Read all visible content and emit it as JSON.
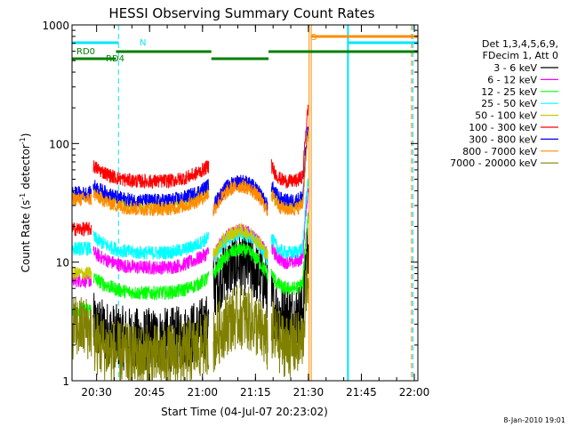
{
  "chart_data": {
    "type": "line",
    "title": "HESSI Observing Summary Count Rates",
    "xlabel": "Start Time (04-Jul-07 20:23:02)",
    "ylabel_main": "Count Rate (s",
    "ylabel_sup1": "-1",
    "ylabel_mid": " detector",
    "ylabel_sup2": "-1",
    "ylabel_end": ")",
    "y_scale": "log",
    "ylim": [
      1,
      1000
    ],
    "xlim": [
      "20:23:02",
      "22:01:00"
    ],
    "y_ticks": [
      "1",
      "10",
      "100",
      "1000"
    ],
    "x_ticks": [
      "20:30",
      "20:45",
      "21:00",
      "21:15",
      "21:30",
      "21:45",
      "22:00"
    ],
    "legend_header": [
      "Det 1,3,4,5,6,9,",
      "FDecim 1, Att 0"
    ],
    "footer_date": "8-Jan-2010 19:01",
    "flags": {
      "RD0": {
        "label": "RD0",
        "color": "#008000"
      },
      "RD4": {
        "label": "RD4",
        "color": "#008000"
      },
      "N": {
        "label": "N",
        "color": "#00e5ff"
      },
      "S": {
        "label": "S",
        "color": "#ff8c00"
      }
    },
    "series": [
      {
        "name": "3 - 6 keV",
        "color": "#000000"
      },
      {
        "name": "6 - 12 keV",
        "color": "#ff00ff"
      },
      {
        "name": "12 - 25 keV",
        "color": "#00ff00"
      },
      {
        "name": "25 - 50 keV",
        "color": "#00ffff"
      },
      {
        "name": "50 - 100 keV",
        "color": "#c8c800"
      },
      {
        "name": "100 - 300 keV",
        "color": "#ff0000"
      },
      {
        "name": "300 - 800 keV",
        "color": "#0000ff"
      },
      {
        "name": "800 - 7000 keV",
        "color": "#ff8c00"
      },
      {
        "name": "7000 - 20000 keV",
        "color": "#808000"
      }
    ]
  }
}
